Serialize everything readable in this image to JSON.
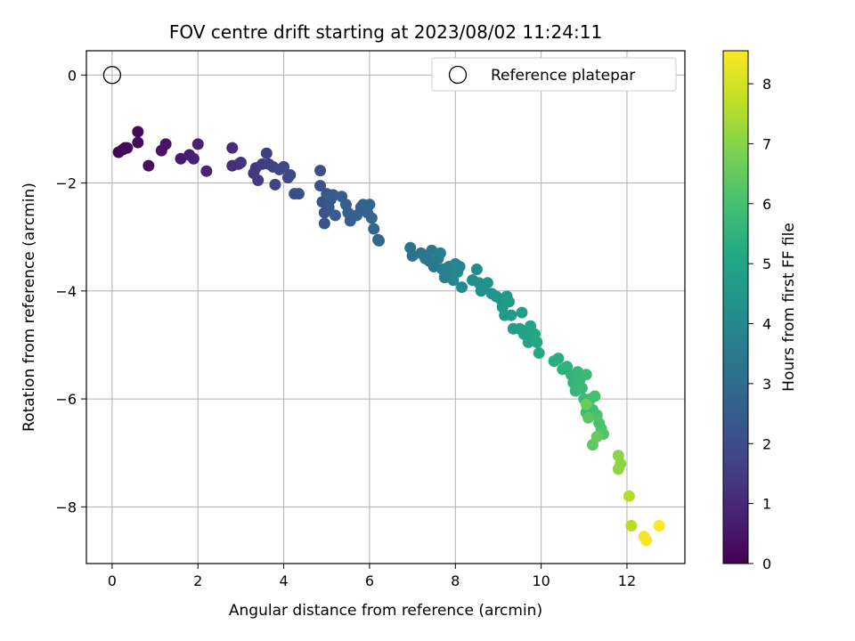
{
  "chart_data": {
    "type": "scatter",
    "title": "FOV centre drift starting at 2023/08/02 11:24:11",
    "xlabel": "Angular distance from reference (arcmin)",
    "ylabel": "Rotation from reference (arcmin)",
    "xlim": [
      -0.6,
      13.35
    ],
    "ylim": [
      -9.05,
      0.45
    ],
    "xticks": [
      0,
      2,
      4,
      6,
      8,
      10,
      12
    ],
    "yticks": [
      0,
      -2,
      -4,
      -6,
      -8
    ],
    "grid": true,
    "legend": {
      "placement": "top-right",
      "entries": [
        "Reference platepar"
      ]
    },
    "colorbar": {
      "label": "Hours from first FF file",
      "colormap": "viridis",
      "range": [
        0,
        8.55
      ],
      "ticks": [
        0,
        1,
        2,
        3,
        4,
        5,
        6,
        7,
        8
      ]
    },
    "reference_point": {
      "x": 0,
      "y": 0
    },
    "points": [
      {
        "x": 0.15,
        "y": -1.43,
        "h": 0.05
      },
      {
        "x": 0.25,
        "y": -1.38,
        "h": 0.1
      },
      {
        "x": 0.3,
        "y": -1.35,
        "h": 0.12
      },
      {
        "x": 0.35,
        "y": -1.35,
        "h": 0.15
      },
      {
        "x": 0.6,
        "y": -1.05,
        "h": 0.2
      },
      {
        "x": 0.6,
        "y": -1.25,
        "h": 0.25
      },
      {
        "x": 0.85,
        "y": -1.68,
        "h": 0.35
      },
      {
        "x": 1.15,
        "y": -1.4,
        "h": 0.45
      },
      {
        "x": 1.25,
        "y": -1.28,
        "h": 0.5
      },
      {
        "x": 1.6,
        "y": -1.55,
        "h": 0.6
      },
      {
        "x": 1.8,
        "y": -1.48,
        "h": 0.7
      },
      {
        "x": 1.9,
        "y": -1.55,
        "h": 0.75
      },
      {
        "x": 2.0,
        "y": -1.28,
        "h": 0.8
      },
      {
        "x": 2.2,
        "y": -1.78,
        "h": 0.9
      },
      {
        "x": 2.8,
        "y": -1.35,
        "h": 1.1
      },
      {
        "x": 2.8,
        "y": -1.68,
        "h": 1.15
      },
      {
        "x": 2.95,
        "y": -1.65,
        "h": 1.2
      },
      {
        "x": 3.0,
        "y": -1.62,
        "h": 1.25
      },
      {
        "x": 3.3,
        "y": -1.82,
        "h": 1.35
      },
      {
        "x": 3.35,
        "y": -1.72,
        "h": 1.4
      },
      {
        "x": 3.4,
        "y": -1.95,
        "h": 1.45
      },
      {
        "x": 3.5,
        "y": -1.65,
        "h": 1.5
      },
      {
        "x": 3.6,
        "y": -1.45,
        "h": 1.55
      },
      {
        "x": 3.65,
        "y": -1.65,
        "h": 1.6
      },
      {
        "x": 3.75,
        "y": -1.7,
        "h": 1.65
      },
      {
        "x": 3.8,
        "y": -2.03,
        "h": 1.7
      },
      {
        "x": 3.9,
        "y": -1.75,
        "h": 1.75
      },
      {
        "x": 4.0,
        "y": -1.7,
        "h": 1.8
      },
      {
        "x": 4.1,
        "y": -1.9,
        "h": 1.85
      },
      {
        "x": 4.15,
        "y": -1.85,
        "h": 1.9
      },
      {
        "x": 4.25,
        "y": -2.2,
        "h": 1.95
      },
      {
        "x": 4.35,
        "y": -2.2,
        "h": 2.0
      },
      {
        "x": 4.85,
        "y": -1.77,
        "h": 2.05
      },
      {
        "x": 4.85,
        "y": -2.05,
        "h": 2.1
      },
      {
        "x": 4.9,
        "y": -2.35,
        "h": 2.15
      },
      {
        "x": 4.95,
        "y": -2.55,
        "h": 2.2
      },
      {
        "x": 4.95,
        "y": -2.75,
        "h": 2.25
      },
      {
        "x": 5.0,
        "y": -2.2,
        "h": 2.3
      },
      {
        "x": 5.05,
        "y": -2.45,
        "h": 2.35
      },
      {
        "x": 5.1,
        "y": -2.3,
        "h": 2.4
      },
      {
        "x": 5.15,
        "y": -2.22,
        "h": 2.45
      },
      {
        "x": 5.2,
        "y": -2.6,
        "h": 2.5
      },
      {
        "x": 5.35,
        "y": -2.25,
        "h": 2.5
      },
      {
        "x": 5.45,
        "y": -2.4,
        "h": 2.55
      },
      {
        "x": 5.5,
        "y": -2.55,
        "h": 2.6
      },
      {
        "x": 5.55,
        "y": -2.7,
        "h": 2.6
      },
      {
        "x": 5.7,
        "y": -2.6,
        "h": 2.65
      },
      {
        "x": 5.8,
        "y": -2.45,
        "h": 2.7
      },
      {
        "x": 5.85,
        "y": -2.4,
        "h": 2.72
      },
      {
        "x": 5.95,
        "y": -2.55,
        "h": 2.75
      },
      {
        "x": 6.0,
        "y": -2.4,
        "h": 2.78
      },
      {
        "x": 6.05,
        "y": -2.65,
        "h": 2.8
      },
      {
        "x": 6.1,
        "y": -2.85,
        "h": 2.85
      },
      {
        "x": 6.2,
        "y": -3.05,
        "h": 2.9
      },
      {
        "x": 6.22,
        "y": -3.07,
        "h": 2.92
      },
      {
        "x": 6.95,
        "y": -3.2,
        "h": 3.2
      },
      {
        "x": 7.0,
        "y": -3.35,
        "h": 3.25
      },
      {
        "x": 7.2,
        "y": -3.3,
        "h": 3.3
      },
      {
        "x": 7.3,
        "y": -3.4,
        "h": 3.35
      },
      {
        "x": 7.4,
        "y": -3.45,
        "h": 3.4
      },
      {
        "x": 7.45,
        "y": -3.25,
        "h": 3.45
      },
      {
        "x": 7.5,
        "y": -3.55,
        "h": 3.5
      },
      {
        "x": 7.6,
        "y": -3.4,
        "h": 3.55
      },
      {
        "x": 7.65,
        "y": -3.3,
        "h": 3.6
      },
      {
        "x": 7.7,
        "y": -3.6,
        "h": 3.65
      },
      {
        "x": 7.75,
        "y": -3.75,
        "h": 3.7
      },
      {
        "x": 7.85,
        "y": -3.55,
        "h": 3.75
      },
      {
        "x": 7.9,
        "y": -3.65,
        "h": 3.8
      },
      {
        "x": 7.95,
        "y": -3.8,
        "h": 3.85
      },
      {
        "x": 8.0,
        "y": -3.5,
        "h": 3.9
      },
      {
        "x": 8.05,
        "y": -3.65,
        "h": 3.92
      },
      {
        "x": 8.1,
        "y": -3.55,
        "h": 3.95
      },
      {
        "x": 8.15,
        "y": -3.93,
        "h": 4.0
      },
      {
        "x": 8.4,
        "y": -3.8,
        "h": 4.1
      },
      {
        "x": 8.5,
        "y": -3.6,
        "h": 4.15
      },
      {
        "x": 8.55,
        "y": -3.85,
        "h": 4.2
      },
      {
        "x": 8.6,
        "y": -4.0,
        "h": 4.25
      },
      {
        "x": 8.65,
        "y": -3.95,
        "h": 4.3
      },
      {
        "x": 8.75,
        "y": -3.85,
        "h": 4.35
      },
      {
        "x": 8.85,
        "y": -4.05,
        "h": 4.4
      },
      {
        "x": 8.95,
        "y": -4.1,
        "h": 4.45
      },
      {
        "x": 9.05,
        "y": -4.15,
        "h": 4.5
      },
      {
        "x": 9.1,
        "y": -4.3,
        "h": 4.55
      },
      {
        "x": 9.15,
        "y": -4.45,
        "h": 4.6
      },
      {
        "x": 9.2,
        "y": -4.1,
        "h": 4.62
      },
      {
        "x": 9.25,
        "y": -4.2,
        "h": 4.65
      },
      {
        "x": 9.3,
        "y": -4.45,
        "h": 4.7
      },
      {
        "x": 9.35,
        "y": -4.7,
        "h": 4.75
      },
      {
        "x": 9.5,
        "y": -4.7,
        "h": 4.8
      },
      {
        "x": 9.55,
        "y": -4.4,
        "h": 4.85
      },
      {
        "x": 9.6,
        "y": -4.8,
        "h": 4.9
      },
      {
        "x": 9.7,
        "y": -4.95,
        "h": 4.95
      },
      {
        "x": 9.75,
        "y": -4.65,
        "h": 5.0
      },
      {
        "x": 9.85,
        "y": -4.8,
        "h": 5.05
      },
      {
        "x": 9.9,
        "y": -4.95,
        "h": 5.1
      },
      {
        "x": 9.95,
        "y": -5.15,
        "h": 5.15
      },
      {
        "x": 10.3,
        "y": -5.3,
        "h": 5.3
      },
      {
        "x": 10.4,
        "y": -5.25,
        "h": 5.35
      },
      {
        "x": 10.5,
        "y": -5.45,
        "h": 5.4
      },
      {
        "x": 10.6,
        "y": -5.4,
        "h": 5.45
      },
      {
        "x": 10.7,
        "y": -5.55,
        "h": 5.5
      },
      {
        "x": 10.75,
        "y": -5.7,
        "h": 5.55
      },
      {
        "x": 10.8,
        "y": -5.85,
        "h": 5.6
      },
      {
        "x": 10.85,
        "y": -5.5,
        "h": 5.62
      },
      {
        "x": 10.9,
        "y": -5.65,
        "h": 5.65
      },
      {
        "x": 10.95,
        "y": -5.8,
        "h": 5.7
      },
      {
        "x": 11.0,
        "y": -6.0,
        "h": 5.75
      },
      {
        "x": 11.05,
        "y": -5.55,
        "h": 5.78
      },
      {
        "x": 11.05,
        "y": -6.25,
        "h": 5.8
      },
      {
        "x": 11.1,
        "y": -6.1,
        "h": 5.85
      },
      {
        "x": 11.15,
        "y": -6.0,
        "h": 5.9
      },
      {
        "x": 11.2,
        "y": -6.2,
        "h": 5.95
      },
      {
        "x": 11.25,
        "y": -5.95,
        "h": 6.0
      },
      {
        "x": 11.3,
        "y": -6.3,
        "h": 6.05
      },
      {
        "x": 11.35,
        "y": -6.45,
        "h": 6.1
      },
      {
        "x": 11.4,
        "y": -6.55,
        "h": 6.15
      },
      {
        "x": 11.45,
        "y": -6.65,
        "h": 6.2
      },
      {
        "x": 11.1,
        "y": -6.35,
        "h": 6.3
      },
      {
        "x": 11.2,
        "y": -6.85,
        "h": 6.4
      },
      {
        "x": 11.3,
        "y": -6.7,
        "h": 6.5
      },
      {
        "x": 11.05,
        "y": -6.1,
        "h": 6.55
      },
      {
        "x": 11.8,
        "y": -7.05,
        "h": 7.0
      },
      {
        "x": 11.85,
        "y": -7.2,
        "h": 7.05
      },
      {
        "x": 11.8,
        "y": -7.3,
        "h": 7.1
      },
      {
        "x": 12.05,
        "y": -7.8,
        "h": 7.55
      },
      {
        "x": 12.1,
        "y": -8.35,
        "h": 7.65
      },
      {
        "x": 12.4,
        "y": -8.55,
        "h": 8.4
      },
      {
        "x": 12.45,
        "y": -8.62,
        "h": 8.45
      },
      {
        "x": 12.75,
        "y": -8.35,
        "h": 8.55
      }
    ]
  }
}
